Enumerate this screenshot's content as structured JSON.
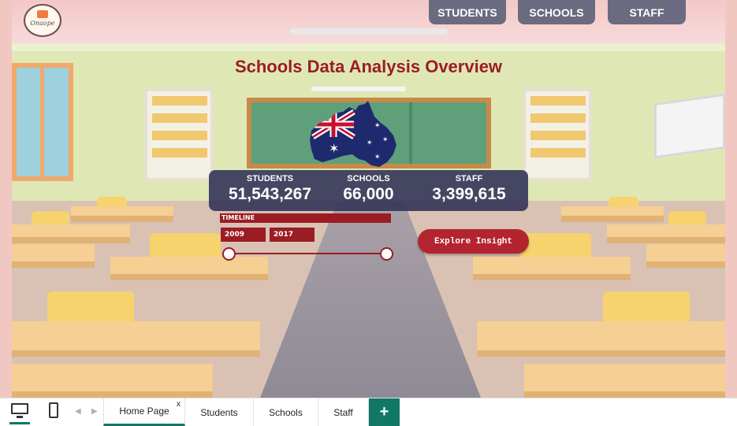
{
  "logo": {
    "text": "Onaope"
  },
  "nav": {
    "students": "STUDENTS",
    "schools": "SCHOOLS",
    "staff": "STAFF"
  },
  "title": "Schools Data Analysis Overview",
  "kpis": {
    "students": {
      "label": "STUDENTS",
      "value": "51,543,267"
    },
    "schools": {
      "label": "SCHOOLS",
      "value": "66,000"
    },
    "staff": {
      "label": "STAFF",
      "value": "3,399,615"
    }
  },
  "timeline": {
    "label": "TIMELINE",
    "start_year": "2009",
    "end_year": "2017"
  },
  "explore_button": "Explore Insight",
  "tabs": [
    {
      "label": "Home Page",
      "active": true
    },
    {
      "label": "Students"
    },
    {
      "label": "Schools"
    },
    {
      "label": "Staff"
    }
  ],
  "tab_close": "x",
  "add_tab": "+",
  "colors": {
    "title": "#9c1c24",
    "accent_red": "#b3242e",
    "nav_button": "#6a6b80",
    "kpi_card": "#343458",
    "tab_accent": "#117865"
  },
  "icons": [
    "desktop-view-icon",
    "mobile-view-icon",
    "australia-flag-map-icon"
  ]
}
